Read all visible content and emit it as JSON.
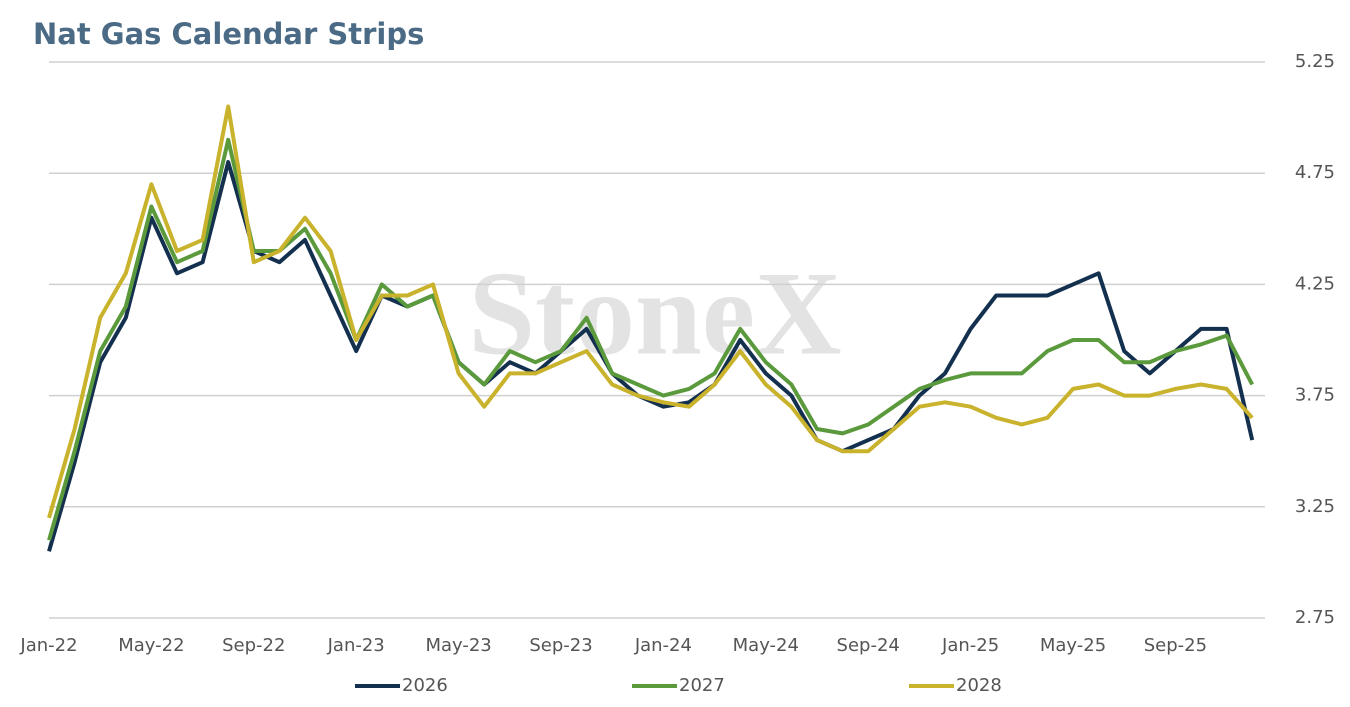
{
  "chart_data": {
    "type": "line",
    "title": "Nat Gas Calendar Strips",
    "watermark": "StoneX",
    "categories": [
      "Jan-22",
      null,
      null,
      null,
      "May-22",
      null,
      null,
      null,
      "Sep-22",
      null,
      null,
      null,
      "Jan-23",
      null,
      null,
      null,
      "May-23",
      null,
      null,
      null,
      "Sep-23",
      null,
      null,
      null,
      "Jan-24",
      null,
      null,
      null,
      "May-24",
      null,
      null,
      null,
      "Sep-24",
      null,
      null,
      null,
      "Jan-25",
      null,
      null,
      null,
      "May-25",
      null,
      null,
      null,
      "Sep-25",
      null,
      null,
      null
    ],
    "series": [
      {
        "name": "2026",
        "color": "#14304f",
        "values": [
          3.05,
          3.45,
          3.9,
          4.1,
          4.55,
          4.3,
          4.35,
          4.8,
          4.4,
          4.35,
          4.45,
          4.2,
          3.95,
          4.2,
          4.15,
          4.2,
          3.9,
          3.8,
          3.9,
          3.85,
          3.95,
          4.05,
          3.85,
          3.75,
          3.7,
          3.72,
          3.8,
          4.0,
          3.85,
          3.75,
          3.55,
          3.5,
          3.55,
          3.6,
          3.75,
          3.85,
          4.05,
          4.2,
          4.2,
          4.2,
          4.25,
          4.3,
          3.95,
          3.85,
          3.95,
          4.05,
          4.05,
          3.55
        ]
      },
      {
        "name": "2027",
        "color": "#5b9a3c",
        "values": [
          3.1,
          3.5,
          3.95,
          4.15,
          4.6,
          4.35,
          4.4,
          4.9,
          4.4,
          4.4,
          4.5,
          4.3,
          4.0,
          4.25,
          4.15,
          4.2,
          3.9,
          3.8,
          3.95,
          3.9,
          3.95,
          4.1,
          3.85,
          3.8,
          3.75,
          3.78,
          3.85,
          4.05,
          3.9,
          3.8,
          3.6,
          3.58,
          3.62,
          3.7,
          3.78,
          3.82,
          3.85,
          3.85,
          3.85,
          3.95,
          4.0,
          4.0,
          3.9,
          3.9,
          3.95,
          3.98,
          4.02,
          3.8
        ]
      },
      {
        "name": "2028",
        "color": "#c9b22c",
        "values": [
          3.2,
          3.6,
          4.1,
          4.3,
          4.7,
          4.4,
          4.45,
          5.05,
          4.35,
          4.4,
          4.55,
          4.4,
          4.0,
          4.2,
          4.2,
          4.25,
          3.85,
          3.7,
          3.85,
          3.85,
          3.9,
          3.95,
          3.8,
          3.75,
          3.72,
          3.7,
          3.8,
          3.95,
          3.8,
          3.7,
          3.55,
          3.5,
          3.5,
          3.6,
          3.7,
          3.72,
          3.7,
          3.65,
          3.62,
          3.65,
          3.78,
          3.8,
          3.75,
          3.75,
          3.78,
          3.8,
          3.78,
          3.65
        ]
      }
    ],
    "ylim": [
      2.75,
      5.25
    ],
    "yticks": [
      2.75,
      3.25,
      3.75,
      4.25,
      4.75,
      5.25
    ],
    "grid": true,
    "legend": "bottom"
  }
}
